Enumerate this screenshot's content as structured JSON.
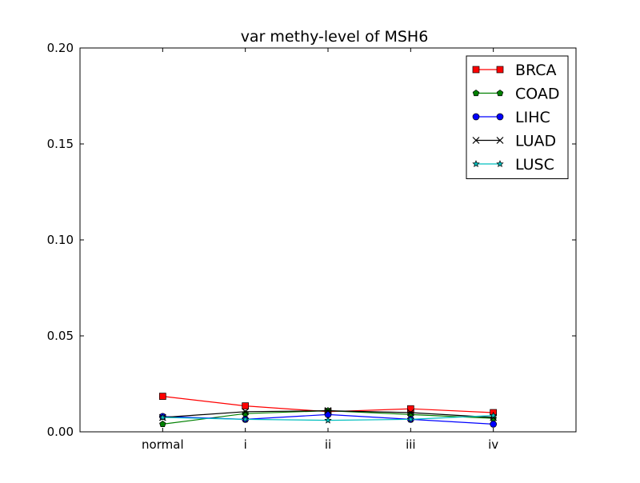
{
  "chart_data": {
    "type": "line",
    "title": "var methy-level of MSH6",
    "xlabel": "",
    "ylabel": "",
    "categories": [
      "normal",
      "i",
      "ii",
      "iii",
      "iv"
    ],
    "ylim": [
      0.0,
      0.2
    ],
    "yticks": [
      "0.00",
      "0.05",
      "0.10",
      "0.15",
      "0.20"
    ],
    "grid": false,
    "legend_position": "top-right",
    "series": [
      {
        "name": "BRCA",
        "color": "#ff0000",
        "marker": "square",
        "values": [
          0.0185,
          0.0135,
          0.0105,
          0.012,
          0.01
        ]
      },
      {
        "name": "COAD",
        "color": "#008000",
        "marker": "pentagon",
        "values": [
          0.004,
          0.0095,
          0.011,
          0.009,
          0.007
        ]
      },
      {
        "name": "LIHC",
        "color": "#0000ff",
        "marker": "circle",
        "values": [
          0.008,
          0.0065,
          0.009,
          0.0065,
          0.004
        ]
      },
      {
        "name": "LUAD",
        "color": "#000000",
        "marker": "x",
        "values": [
          0.0075,
          0.0105,
          0.011,
          0.01,
          0.0075
        ]
      },
      {
        "name": "LUSC",
        "color": "#00bfbf",
        "marker": "star",
        "values": [
          0.0075,
          0.0065,
          0.006,
          0.0065,
          0.0085
        ]
      }
    ]
  }
}
